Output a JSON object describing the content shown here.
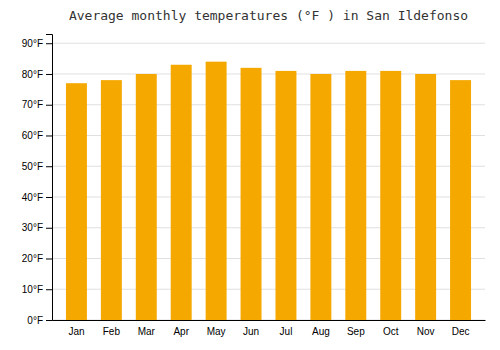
{
  "chart_data": {
    "type": "bar",
    "title": "Average monthly temperatures (°F ) in San Ildefonso",
    "categories": [
      "Jan",
      "Feb",
      "Mar",
      "Apr",
      "May",
      "Jun",
      "Jul",
      "Aug",
      "Sep",
      "Oct",
      "Nov",
      "Dec"
    ],
    "values": [
      77,
      78,
      80,
      83,
      84,
      82,
      81,
      80,
      81,
      81,
      80,
      78
    ],
    "color": "#F5A800",
    "ylim": [
      0,
      93
    ],
    "yticks": [
      {
        "value": 0,
        "label": "0°F"
      },
      {
        "value": 10,
        "label": "10°F"
      },
      {
        "value": 20,
        "label": "20°F"
      },
      {
        "value": 30,
        "label": "30°F"
      },
      {
        "value": 40,
        "label": "40°F"
      },
      {
        "value": 50,
        "label": "50°F"
      },
      {
        "value": 60,
        "label": "60°F"
      },
      {
        "value": 70,
        "label": "70°F"
      },
      {
        "value": 80,
        "label": "80°F"
      },
      {
        "value": 90,
        "label": "90°F"
      }
    ],
    "grid": true
  }
}
